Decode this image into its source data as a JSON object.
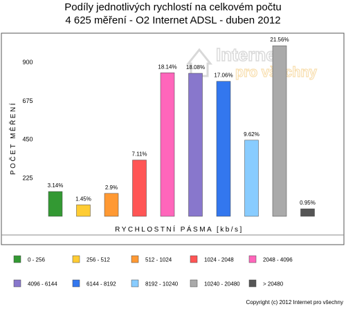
{
  "chart_data": {
    "type": "bar",
    "title_line1": "Podíly jednotlivých rychlostí na celkovém počtu",
    "title_line2": "4 625 měření - O2 Internet ADSL  - duben 2012",
    "ylabel": "POČET MĚŘENÍ",
    "xlabel": "RYCHLOSTNÍ PÁSMA [kb/s]",
    "ylim": [
      0,
      1030
    ],
    "yticks": [
      "225",
      "450",
      "675",
      "900"
    ],
    "ytick_values": [
      225,
      450,
      675,
      900
    ],
    "grid": false,
    "legend_placement": "bottom",
    "categories": [
      "0 - 256",
      "256 - 512",
      "512 - 1024",
      "1024 - 2048",
      "2048 - 4096",
      "4096 - 6144",
      "6144 - 8192",
      "8192 - 10240",
      "10240 - 20480",
      "> 20480"
    ],
    "values": [
      145,
      67,
      134,
      329,
      839,
      836,
      789,
      445,
      997,
      44
    ],
    "labels": [
      "3.14%",
      "1.45%",
      "2.9%",
      "7.11%",
      "18.14%",
      "18.08%",
      "17.06%",
      "9.62%",
      "21.56%",
      "0.95%"
    ],
    "colors": [
      "#339933",
      "#ffcc33",
      "#ff9933",
      "#ff5555",
      "#ff66bb",
      "#8877cc",
      "#3377ee",
      "#88ccff",
      "#aaaaaa",
      "#555555"
    ]
  },
  "watermark": {
    "line1": "Internet",
    "line2": "pro všechny"
  },
  "copyright": "Copyright (c) 2012 Internet pro všechny"
}
